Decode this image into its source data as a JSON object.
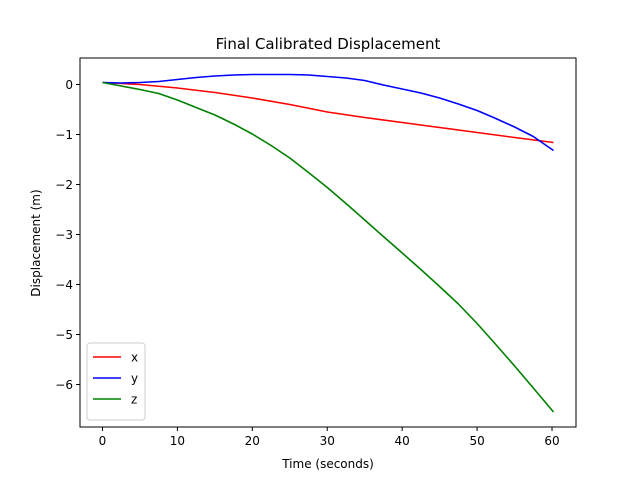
{
  "chart_data": {
    "type": "line",
    "title": "Final Calibrated Displacement",
    "xlabel": "Time (seconds)",
    "ylabel": "Displacement (m)",
    "xlim": [
      -3.0,
      63.2
    ],
    "ylim": [
      -6.85,
      0.53
    ],
    "xticks": [
      0,
      10,
      20,
      30,
      40,
      50,
      60
    ],
    "yticks": [
      0,
      -1,
      -2,
      -3,
      -4,
      -5,
      -6
    ],
    "xtick_labels": [
      "0",
      "10",
      "20",
      "30",
      "40",
      "50",
      "60"
    ],
    "ytick_labels": [
      "0",
      "−1",
      "−2",
      "−3",
      "−4",
      "−5",
      "−6"
    ],
    "grid": false,
    "legend_position": "lower-left",
    "series": [
      {
        "name": "x",
        "color": "#ff0000",
        "x": [
          0,
          5,
          10,
          15,
          20,
          25,
          30,
          35,
          40,
          45,
          50,
          55,
          60.2
        ],
        "y": [
          0.04,
          0.0,
          -0.07,
          -0.16,
          -0.27,
          -0.4,
          -0.55,
          -0.66,
          -0.76,
          -0.86,
          -0.96,
          -1.06,
          -1.16
        ]
      },
      {
        "name": "y",
        "color": "#0000ff",
        "x": [
          0,
          2.5,
          5,
          7.5,
          10,
          12.5,
          15,
          17.5,
          20,
          22.5,
          25,
          27.5,
          30,
          32.5,
          35,
          37.5,
          40,
          42.5,
          45,
          47.5,
          50,
          52.5,
          55,
          57.5,
          60.2
        ],
        "y": [
          0.04,
          0.03,
          0.04,
          0.06,
          0.1,
          0.14,
          0.17,
          0.19,
          0.2,
          0.2,
          0.2,
          0.19,
          0.16,
          0.13,
          0.08,
          -0.01,
          -0.09,
          -0.17,
          -0.27,
          -0.39,
          -0.52,
          -0.68,
          -0.85,
          -1.04,
          -1.32
        ]
      },
      {
        "name": "z",
        "color": "#008000",
        "x": [
          0,
          2.5,
          5,
          7.5,
          10,
          12.5,
          15,
          17.5,
          20,
          22.5,
          25,
          27.5,
          30,
          32.5,
          35,
          37.5,
          40,
          42.5,
          45,
          47.5,
          50,
          52.5,
          55,
          57.5,
          60.2
        ],
        "y": [
          0.04,
          -0.03,
          -0.1,
          -0.18,
          -0.31,
          -0.46,
          -0.61,
          -0.79,
          -0.99,
          -1.22,
          -1.47,
          -1.76,
          -2.06,
          -2.38,
          -2.71,
          -3.04,
          -3.37,
          -3.7,
          -4.04,
          -4.39,
          -4.78,
          -5.2,
          -5.63,
          -6.07,
          -6.55
        ]
      }
    ]
  }
}
